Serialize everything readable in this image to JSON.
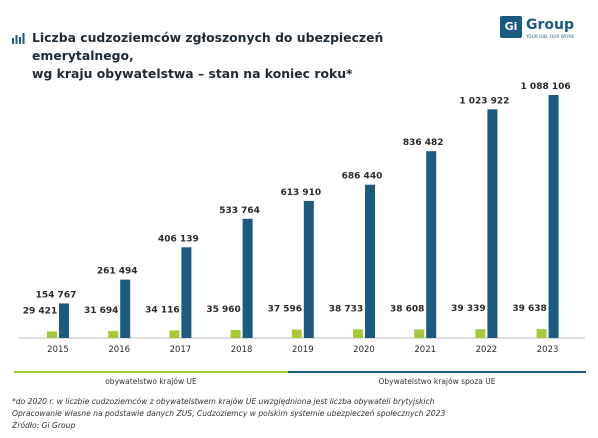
{
  "header": {
    "title_line1": "Liczba cudzoziemców zgłoszonych do ubezpieczeń emerytalnego,",
    "title_line2": "wg kraju obywatelstwa – stan na koniec roku*"
  },
  "logo": {
    "mark": "Gi",
    "word": "Group",
    "tagline": "YOUR JOB, OUR WORK"
  },
  "colors": {
    "ue": "#a6c93a",
    "non_ue": "#1c5a80",
    "axis": "#bdbdbd",
    "text": "#2a2a2a"
  },
  "chart_data": {
    "type": "bar",
    "categories": [
      "2015",
      "2016",
      "2017",
      "2018",
      "2019",
      "2020",
      "2021",
      "2022",
      "2023"
    ],
    "series": [
      {
        "name": "obywatelstwo krajów UE",
        "values": [
          29421,
          31694,
          34116,
          35960,
          37596,
          38733,
          38608,
          39339,
          39638
        ],
        "labels": [
          "29 421",
          "31 694",
          "34 116",
          "35 960",
          "37 596",
          "38 733",
          "38 608",
          "39 339",
          "39 638"
        ]
      },
      {
        "name": "Obywatelstwo krajów spoza UE",
        "values": [
          154767,
          261494,
          406139,
          533764,
          613910,
          686440,
          836482,
          1023922,
          1088106
        ],
        "labels": [
          "154 767",
          "261 494",
          "406 139",
          "533 764",
          "613 910",
          "686 440",
          "836 482",
          "1 023 922",
          "1 088 106"
        ]
      }
    ],
    "ylim": [
      0,
      1088106
    ],
    "grid": false,
    "legend": "bottom"
  },
  "legend": {
    "ue_label": "obywatelstwo krajów UE",
    "non_ue_label": "Obywatelstwo krajów spoza UE"
  },
  "footnotes": {
    "line1": "*do 2020 r. w liczbie cudzoziemców z obywatelstwem krajów UE uwzględniona jest liczba obywateli brytyjskich",
    "line2": "Opracowanie własne na podstawie danych ZUS, Cudzoziemcy w polskim systemie ubezpieczeń społecznych 2023",
    "line3": "Źródło: Gi Group"
  }
}
